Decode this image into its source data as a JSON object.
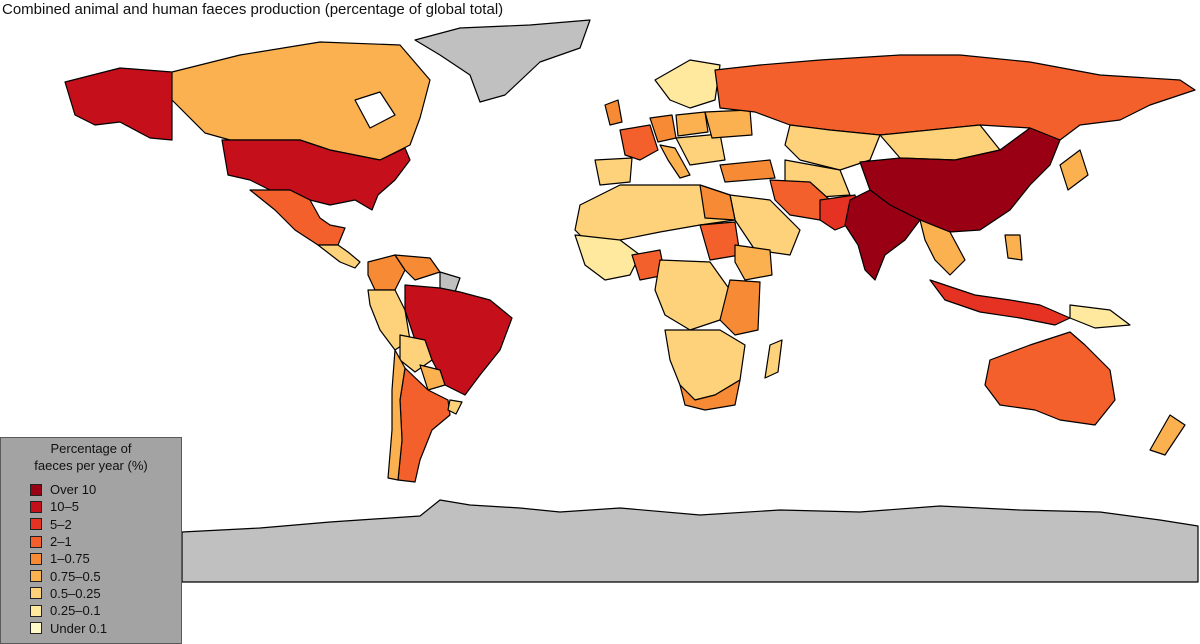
{
  "title": "Combined animal and human faeces production (percentage of global total)",
  "legend": {
    "title_line1": "Percentage of",
    "title_line2": "faeces per year (%)",
    "items": [
      {
        "label": "Over 10",
        "color": "#990014"
      },
      {
        "label": "10–5",
        "color": "#c5101c"
      },
      {
        "label": "5–2",
        "color": "#e63222"
      },
      {
        "label": "2–1",
        "color": "#f3602c"
      },
      {
        "label": "1–0.75",
        "color": "#f78b35"
      },
      {
        "label": "0.75–0.5",
        "color": "#fbb150"
      },
      {
        "label": "0.5–0.25",
        "color": "#fdd27b"
      },
      {
        "label": "0.25–0.1",
        "color": "#fee99e"
      },
      {
        "label": "Under 0.1",
        "color": "#fffac8"
      }
    ]
  },
  "colors": {
    "no_data": "#c0c0c0",
    "ocean": "#ffffff",
    "border": "#000000"
  }
}
